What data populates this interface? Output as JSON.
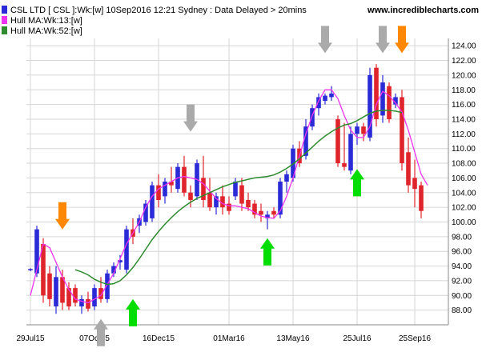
{
  "header": {
    "title": "CSL LTD [ CSL ]:Wk:[w]  10Sep2016 12:21 Sydney : Data Delayed > 20mins",
    "brand": "www.incrediblecharts.com"
  },
  "chart_data": {
    "type": "candlestick",
    "title": "CSL LTD [ CSL ]:Wk:[w]  10Sep2016 12:21 Sydney : Data Delayed > 20mins",
    "ylim": [
      86,
      125
    ],
    "grid": true,
    "legend_position": "top-left",
    "y_ticks": [
      88,
      90,
      92,
      94,
      96,
      98,
      100,
      102,
      104,
      106,
      108,
      110,
      112,
      114,
      116,
      118,
      120,
      122,
      124
    ],
    "y_tick_labels": [
      "88.00",
      "90.00",
      "92.00",
      "94.00",
      "96.00",
      "98.00",
      "100.00",
      "102.00",
      "104.00",
      "106.00",
      "108.00",
      "110.00",
      "112.00",
      "114.00",
      "116.00",
      "118.00",
      "120.00",
      "122.00",
      "124.00"
    ],
    "x_ticks": [
      {
        "label": "29Jul15",
        "week": 0
      },
      {
        "label": "07Oct15",
        "week": 10
      },
      {
        "label": "16Dec15",
        "week": 20
      },
      {
        "label": "01Mar16",
        "week": 31
      },
      {
        "label": "13May16",
        "week": 41
      },
      {
        "label": "25Jul16",
        "week": 51
      },
      {
        "label": "25Sep16",
        "week": 60
      }
    ],
    "series": [
      {
        "name": "CSL LTD [ CSL ]:Wk:[w]",
        "type": "candles",
        "color_up": "#2a2ad6",
        "color_down": "#e0242c",
        "values": [
          {
            "o": 93.5,
            "h": 93.7,
            "l": 93.3,
            "c": 93.6
          },
          {
            "o": 93.0,
            "h": 99.5,
            "l": 92.5,
            "c": 99.0
          },
          {
            "o": 97.0,
            "h": 97.8,
            "l": 89.0,
            "c": 90.0
          },
          {
            "o": 93.0,
            "h": 94.0,
            "l": 88.5,
            "c": 89.5
          },
          {
            "o": 88.5,
            "h": 94.0,
            "l": 87.5,
            "c": 92.5
          },
          {
            "o": 92.5,
            "h": 93.5,
            "l": 88.0,
            "c": 89.0
          },
          {
            "o": 91.0,
            "h": 91.8,
            "l": 88.0,
            "c": 88.5
          },
          {
            "o": 91.0,
            "h": 91.5,
            "l": 88.5,
            "c": 89.0
          },
          {
            "o": 88.5,
            "h": 90.0,
            "l": 87.5,
            "c": 89.5
          },
          {
            "o": 89.5,
            "h": 90.5,
            "l": 87.8,
            "c": 88.2
          },
          {
            "o": 88.5,
            "h": 91.5,
            "l": 88.0,
            "c": 91.0
          },
          {
            "o": 91.0,
            "h": 92.5,
            "l": 89.0,
            "c": 89.5
          },
          {
            "o": 89.5,
            "h": 93.5,
            "l": 89.0,
            "c": 93.0
          },
          {
            "o": 93.0,
            "h": 94.5,
            "l": 92.5,
            "c": 94.0
          },
          {
            "o": 94.5,
            "h": 95.5,
            "l": 93.5,
            "c": 94.8
          },
          {
            "o": 93.5,
            "h": 99.5,
            "l": 93.0,
            "c": 99.0
          },
          {
            "o": 99.0,
            "h": 100.5,
            "l": 97.0,
            "c": 98.0
          },
          {
            "o": 99.5,
            "h": 101.0,
            "l": 98.5,
            "c": 100.5
          },
          {
            "o": 100.0,
            "h": 103.0,
            "l": 99.5,
            "c": 102.5
          },
          {
            "o": 100.5,
            "h": 105.5,
            "l": 100.0,
            "c": 105.0
          },
          {
            "o": 105.0,
            "h": 106.5,
            "l": 102.0,
            "c": 103.0
          },
          {
            "o": 103.5,
            "h": 106.0,
            "l": 102.5,
            "c": 105.5
          },
          {
            "o": 105.5,
            "h": 107.5,
            "l": 104.0,
            "c": 105.0
          },
          {
            "o": 104.5,
            "h": 108.0,
            "l": 104.0,
            "c": 107.5
          },
          {
            "o": 107.5,
            "h": 109.0,
            "l": 103.5,
            "c": 104.0
          },
          {
            "o": 104.0,
            "h": 105.0,
            "l": 102.0,
            "c": 103.0
          },
          {
            "o": 103.5,
            "h": 108.5,
            "l": 103.0,
            "c": 108.0
          },
          {
            "o": 106.0,
            "h": 109.0,
            "l": 102.0,
            "c": 103.0
          },
          {
            "o": 104.0,
            "h": 106.0,
            "l": 101.5,
            "c": 102.0
          },
          {
            "o": 102.0,
            "h": 104.0,
            "l": 101.0,
            "c": 103.5
          },
          {
            "o": 103.5,
            "h": 105.0,
            "l": 101.0,
            "c": 102.0
          },
          {
            "o": 102.5,
            "h": 103.5,
            "l": 101.0,
            "c": 101.5
          },
          {
            "o": 103.5,
            "h": 106.0,
            "l": 103.0,
            "c": 105.5
          },
          {
            "o": 105.0,
            "h": 106.0,
            "l": 101.5,
            "c": 102.5
          },
          {
            "o": 103.0,
            "h": 104.0,
            "l": 101.5,
            "c": 102.0
          },
          {
            "o": 102.5,
            "h": 103.0,
            "l": 100.5,
            "c": 101.0
          },
          {
            "o": 101.5,
            "h": 102.5,
            "l": 100.0,
            "c": 101.0
          },
          {
            "o": 100.5,
            "h": 101.5,
            "l": 99.0,
            "c": 101.0
          },
          {
            "o": 101.5,
            "h": 102.0,
            "l": 100.5,
            "c": 101.0
          },
          {
            "o": 101.0,
            "h": 106.0,
            "l": 100.5,
            "c": 105.5
          },
          {
            "o": 105.5,
            "h": 107.0,
            "l": 104.0,
            "c": 106.5
          },
          {
            "o": 106.0,
            "h": 110.5,
            "l": 105.5,
            "c": 110.0
          },
          {
            "o": 110.0,
            "h": 111.0,
            "l": 107.5,
            "c": 108.0
          },
          {
            "o": 109.0,
            "h": 114.0,
            "l": 108.5,
            "c": 113.0
          },
          {
            "o": 113.0,
            "h": 116.0,
            "l": 112.5,
            "c": 115.5
          },
          {
            "o": 115.5,
            "h": 117.5,
            "l": 114.5,
            "c": 117.0
          },
          {
            "o": 116.5,
            "h": 117.5,
            "l": 116.0,
            "c": 117.2
          },
          {
            "o": 117.0,
            "h": 118.5,
            "l": 116.5,
            "c": 117.5
          },
          {
            "o": 114.0,
            "h": 114.5,
            "l": 107.5,
            "c": 108.0
          },
          {
            "o": 108.0,
            "h": 113.5,
            "l": 107.0,
            "c": 107.5
          },
          {
            "o": 107.0,
            "h": 113.0,
            "l": 106.5,
            "c": 112.0
          },
          {
            "o": 112.0,
            "h": 113.5,
            "l": 110.5,
            "c": 113.0
          },
          {
            "o": 113.0,
            "h": 113.5,
            "l": 111.0,
            "c": 112.0
          },
          {
            "o": 111.5,
            "h": 121.0,
            "l": 111.0,
            "c": 120.0
          },
          {
            "o": 121.0,
            "h": 121.5,
            "l": 113.0,
            "c": 114.0
          },
          {
            "o": 114.5,
            "h": 120.0,
            "l": 113.5,
            "c": 119.0
          },
          {
            "o": 118.5,
            "h": 119.0,
            "l": 113.5,
            "c": 114.0
          },
          {
            "o": 116.0,
            "h": 117.5,
            "l": 115.5,
            "c": 117.0
          },
          {
            "o": 117.0,
            "h": 118.0,
            "l": 107.0,
            "c": 108.0
          },
          {
            "o": 109.5,
            "h": 111.5,
            "l": 104.0,
            "c": 105.0
          },
          {
            "o": 106.0,
            "h": 108.5,
            "l": 102.0,
            "c": 104.5
          },
          {
            "o": 105.0,
            "h": 105.5,
            "l": 100.5,
            "c": 101.5
          }
        ]
      },
      {
        "name": "Hull MA:Wk:13:[w]",
        "type": "line",
        "color": "#ee33ee",
        "values": [
          90.0,
          93.5,
          97.0,
          96.5,
          94.5,
          92.5,
          90.8,
          89.5,
          89.2,
          89.0,
          89.5,
          90.0,
          91.5,
          93.0,
          95.0,
          97.0,
          98.5,
          100.0,
          102.0,
          103.5,
          104.5,
          105.0,
          105.5,
          106.0,
          106.2,
          106.0,
          105.8,
          105.2,
          104.2,
          103.2,
          102.5,
          102.2,
          102.2,
          102.0,
          101.8,
          101.3,
          100.8,
          100.6,
          100.5,
          101.5,
          103.5,
          106.0,
          109.0,
          112.0,
          114.5,
          116.5,
          118.0,
          118.0,
          116.8,
          114.5,
          112.5,
          111.5,
          111.5,
          113.0,
          116.0,
          117.8,
          117.2,
          116.2,
          115.0,
          112.5,
          109.5,
          106.5,
          105.0
        ]
      },
      {
        "name": "Hull MA:Wk:52:[w]",
        "type": "line",
        "color": "#2e8b2e",
        "values": [
          null,
          null,
          null,
          null,
          null,
          null,
          null,
          93.5,
          93.2,
          92.8,
          92.2,
          91.8,
          91.5,
          91.6,
          92.0,
          92.8,
          93.8,
          95.0,
          96.3,
          97.6,
          98.7,
          99.7,
          100.6,
          101.4,
          102.1,
          102.7,
          103.2,
          103.6,
          104.0,
          104.4,
          104.8,
          105.1,
          105.4,
          105.6,
          105.8,
          106.0,
          106.1,
          106.2,
          106.4,
          106.8,
          107.3,
          107.9,
          108.6,
          109.4,
          110.2,
          111.0,
          111.7,
          112.3,
          112.8,
          113.2,
          113.4,
          113.8,
          114.3,
          114.8,
          115.1,
          115.2,
          115.2,
          115.1,
          114.9
        ]
      }
    ],
    "annotations": [
      {
        "type": "arrow",
        "direction": "down",
        "color": "#ff8800",
        "week": 5,
        "value": 99.0
      },
      {
        "type": "arrow",
        "direction": "up",
        "color": "#aaaaaa",
        "week": 11,
        "value": 86.8
      },
      {
        "type": "arrow",
        "direction": "up",
        "color": "#00dd00",
        "week": 16,
        "value": 89.5
      },
      {
        "type": "arrow",
        "direction": "down",
        "color": "#aaaaaa",
        "week": 25,
        "value": 112.3
      },
      {
        "type": "arrow",
        "direction": "up",
        "color": "#00dd00",
        "week": 37,
        "value": 97.8
      },
      {
        "type": "arrow",
        "direction": "down",
        "color": "#aaaaaa",
        "week": 46,
        "value": 123.0
      },
      {
        "type": "arrow",
        "direction": "up",
        "color": "#00dd00",
        "week": 51,
        "value": 107.2
      },
      {
        "type": "arrow",
        "direction": "down",
        "color": "#aaaaaa",
        "week": 55,
        "value": 123.0
      },
      {
        "type": "arrow",
        "direction": "down",
        "color": "#ff8800",
        "week": 58,
        "value": 123.0
      }
    ]
  }
}
